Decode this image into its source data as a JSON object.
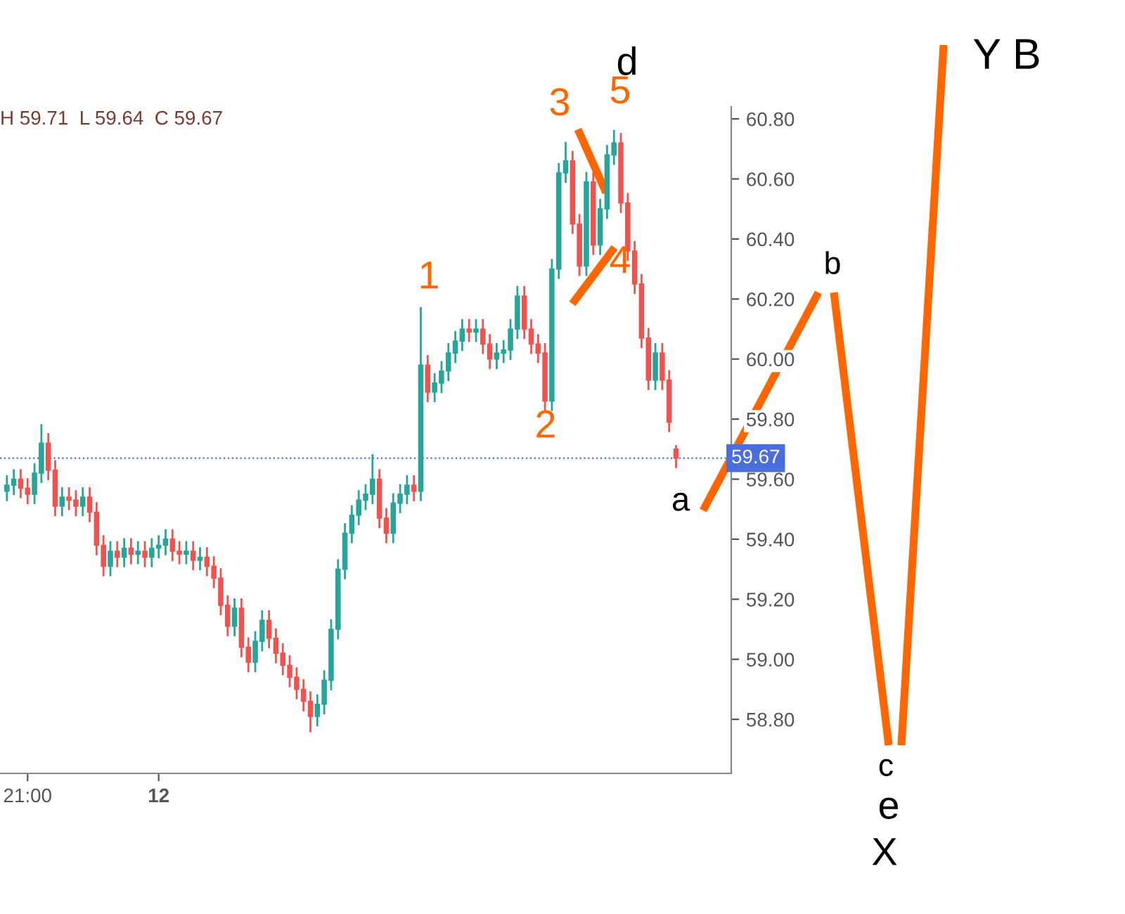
{
  "chart_data": {
    "type": "candlestick",
    "categories": [
      null,
      null,
      null,
      "21:00",
      null,
      null,
      null,
      null,
      null,
      null,
      null,
      null,
      null,
      null,
      null,
      null,
      null,
      null,
      null,
      null,
      null,
      null,
      "12",
      null,
      null,
      null,
      null,
      null,
      null,
      null,
      null,
      null,
      null,
      null,
      null,
      null,
      null,
      null,
      null,
      null,
      null,
      null,
      null,
      null,
      null,
      null,
      null,
      null,
      null,
      null,
      null,
      null,
      null,
      null,
      null,
      null,
      null,
      null,
      null,
      null,
      null,
      null,
      null,
      null,
      null,
      null,
      null,
      null,
      null,
      null,
      null,
      null,
      null,
      null,
      null,
      null,
      null,
      null,
      null,
      null,
      null,
      null,
      null,
      null,
      null,
      null,
      null,
      null,
      null,
      null,
      null,
      null,
      null,
      null,
      null,
      null,
      null,
      null
    ],
    "ohlc": [
      [
        59.56,
        59.61,
        59.53,
        59.58
      ],
      [
        59.58,
        59.63,
        59.55,
        59.6
      ],
      [
        59.6,
        59.63,
        59.54,
        59.57
      ],
      [
        59.57,
        59.6,
        59.52,
        59.55
      ],
      [
        59.55,
        59.65,
        59.52,
        59.62
      ],
      [
        59.62,
        59.78,
        59.59,
        59.72
      ],
      [
        59.72,
        59.75,
        59.6,
        59.63
      ],
      [
        59.63,
        59.66,
        59.48,
        59.51
      ],
      [
        59.51,
        59.57,
        59.48,
        59.54
      ],
      [
        59.54,
        59.57,
        59.5,
        59.53
      ],
      [
        59.53,
        59.56,
        59.48,
        59.51
      ],
      [
        59.51,
        59.57,
        59.48,
        59.54
      ],
      [
        59.54,
        59.57,
        59.46,
        59.49
      ],
      [
        59.49,
        59.52,
        59.35,
        59.38
      ],
      [
        59.38,
        59.41,
        59.28,
        59.31
      ],
      [
        59.31,
        59.39,
        59.28,
        59.36
      ],
      [
        59.36,
        59.39,
        59.31,
        59.34
      ],
      [
        59.34,
        59.4,
        59.31,
        59.37
      ],
      [
        59.37,
        59.4,
        59.32,
        59.35
      ],
      [
        59.35,
        59.39,
        59.32,
        59.36
      ],
      [
        59.36,
        59.39,
        59.31,
        59.34
      ],
      [
        59.34,
        59.4,
        59.31,
        59.37
      ],
      [
        59.37,
        59.41,
        59.34,
        59.38
      ],
      [
        59.38,
        59.43,
        59.35,
        59.4
      ],
      [
        59.4,
        59.43,
        59.33,
        59.36
      ],
      [
        59.36,
        59.39,
        59.32,
        59.35
      ],
      [
        59.35,
        59.39,
        59.32,
        59.36
      ],
      [
        59.36,
        59.39,
        59.3,
        59.33
      ],
      [
        59.33,
        59.37,
        59.3,
        59.34
      ],
      [
        59.34,
        59.37,
        59.28,
        59.31
      ],
      [
        59.31,
        59.34,
        59.24,
        59.27
      ],
      [
        59.27,
        59.3,
        59.15,
        59.18
      ],
      [
        59.18,
        59.21,
        59.08,
        59.11
      ],
      [
        59.11,
        59.2,
        59.08,
        59.17
      ],
      [
        59.17,
        59.2,
        59.01,
        59.04
      ],
      [
        59.04,
        59.07,
        58.96,
        58.99
      ],
      [
        58.99,
        59.09,
        58.96,
        59.06
      ],
      [
        59.06,
        59.16,
        59.03,
        59.13
      ],
      [
        59.13,
        59.16,
        59.04,
        59.07
      ],
      [
        59.07,
        59.1,
        58.99,
        59.02
      ],
      [
        59.02,
        59.05,
        58.95,
        58.98
      ],
      [
        58.98,
        59.01,
        58.91,
        58.94
      ],
      [
        58.94,
        58.97,
        58.87,
        58.9
      ],
      [
        58.9,
        58.93,
        58.83,
        58.86
      ],
      [
        58.86,
        58.89,
        58.76,
        58.81
      ],
      [
        58.81,
        58.88,
        58.78,
        58.85
      ],
      [
        58.85,
        58.96,
        58.82,
        58.93
      ],
      [
        58.93,
        59.13,
        58.9,
        59.1
      ],
      [
        59.1,
        59.33,
        59.07,
        59.3
      ],
      [
        59.3,
        59.45,
        59.27,
        59.42
      ],
      [
        59.42,
        59.51,
        59.39,
        59.48
      ],
      [
        59.48,
        59.56,
        59.45,
        59.53
      ],
      [
        59.53,
        59.58,
        59.5,
        59.55
      ],
      [
        59.55,
        59.68,
        59.52,
        59.6
      ],
      [
        59.6,
        59.63,
        59.44,
        59.47
      ],
      [
        59.47,
        59.5,
        59.39,
        59.42
      ],
      [
        59.42,
        59.55,
        59.39,
        59.52
      ],
      [
        59.52,
        59.58,
        59.49,
        59.55
      ],
      [
        59.55,
        59.61,
        59.52,
        59.58
      ],
      [
        59.58,
        59.61,
        59.53,
        59.56
      ],
      [
        59.56,
        60.17,
        59.53,
        59.98
      ],
      [
        59.98,
        60.01,
        59.86,
        59.89
      ],
      [
        59.89,
        59.95,
        59.86,
        59.92
      ],
      [
        59.92,
        59.99,
        59.89,
        59.96
      ],
      [
        59.96,
        60.05,
        59.93,
        60.02
      ],
      [
        60.02,
        60.09,
        59.99,
        60.06
      ],
      [
        60.06,
        60.13,
        60.03,
        60.1
      ],
      [
        60.1,
        60.13,
        60.06,
        60.09
      ],
      [
        60.09,
        60.13,
        60.06,
        60.1
      ],
      [
        60.1,
        60.13,
        60.02,
        60.05
      ],
      [
        60.05,
        60.08,
        59.97,
        60.0
      ],
      [
        60.0,
        60.05,
        59.97,
        60.02
      ],
      [
        60.02,
        60.06,
        59.99,
        60.03
      ],
      [
        60.03,
        60.13,
        60.0,
        60.1
      ],
      [
        60.1,
        60.24,
        60.07,
        60.21
      ],
      [
        60.21,
        60.24,
        60.07,
        60.1
      ],
      [
        60.1,
        60.13,
        60.02,
        60.05
      ],
      [
        60.05,
        60.08,
        59.99,
        60.02
      ],
      [
        60.02,
        60.05,
        59.83,
        59.86
      ],
      [
        59.86,
        60.33,
        59.83,
        60.3
      ],
      [
        60.3,
        60.65,
        60.27,
        60.62
      ],
      [
        60.62,
        60.72,
        60.59,
        60.66
      ],
      [
        60.66,
        60.69,
        60.42,
        60.45
      ],
      [
        60.45,
        60.48,
        60.28,
        60.31
      ],
      [
        60.31,
        60.62,
        60.28,
        60.59
      ],
      [
        60.59,
        60.62,
        60.35,
        60.38
      ],
      [
        60.38,
        60.53,
        60.35,
        60.5
      ],
      [
        60.5,
        60.71,
        60.47,
        60.68
      ],
      [
        60.68,
        60.76,
        60.65,
        60.72
      ],
      [
        60.72,
        60.75,
        60.49,
        60.52
      ],
      [
        60.52,
        60.55,
        60.33,
        60.36
      ],
      [
        60.36,
        60.39,
        60.22,
        60.25
      ],
      [
        60.25,
        60.28,
        60.04,
        60.07
      ],
      [
        60.07,
        60.1,
        59.9,
        59.93
      ],
      [
        59.93,
        60.05,
        59.9,
        60.02
      ],
      [
        60.02,
        60.05,
        59.9,
        59.93
      ],
      [
        59.93,
        59.96,
        59.76,
        59.79
      ],
      [
        59.7,
        59.71,
        59.64,
        59.67
      ]
    ],
    "colors": [
      "#26a69a",
      "#26a69a",
      "#ef5350",
      "#ef5350",
      "#26a69a",
      "#26a69a",
      "#ef5350",
      "#ef5350",
      "#26a69a",
      "#ef5350",
      "#ef5350",
      "#26a69a",
      "#ef5350",
      "#ef5350",
      "#ef5350",
      "#26a69a",
      "#ef5350",
      "#26a69a",
      "#ef5350",
      "#26a69a",
      "#ef5350",
      "#26a69a",
      "#26a69a",
      "#26a69a",
      "#ef5350",
      "#ef5350",
      "#26a69a",
      "#ef5350",
      "#26a69a",
      "#ef5350",
      "#ef5350",
      "#ef5350",
      "#ef5350",
      "#26a69a",
      "#ef5350",
      "#ef5350",
      "#26a69a",
      "#26a69a",
      "#ef5350",
      "#ef5350",
      "#ef5350",
      "#ef5350",
      "#ef5350",
      "#ef5350",
      "#ef5350",
      "#26a69a",
      "#26a69a",
      "#26a69a",
      "#26a69a",
      "#26a69a",
      "#26a69a",
      "#26a69a",
      "#26a69a",
      "#26a69a",
      "#ef5350",
      "#ef5350",
      "#26a69a",
      "#26a69a",
      "#26a69a",
      "#ef5350",
      "#26a69a",
      "#ef5350",
      "#26a69a",
      "#26a69a",
      "#26a69a",
      "#26a69a",
      "#26a69a",
      "#ef5350",
      "#26a69a",
      "#ef5350",
      "#ef5350",
      "#26a69a",
      "#26a69a",
      "#26a69a",
      "#26a69a",
      "#ef5350",
      "#ef5350",
      "#ef5350",
      "#ef5350",
      "#26a69a",
      "#26a69a",
      "#26a69a",
      "#ef5350",
      "#ef5350",
      "#26a69a",
      "#ef5350",
      "#26a69a",
      "#26a69a",
      "#26a69a",
      "#ef5350",
      "#ef5350",
      "#ef5350",
      "#ef5350",
      "#ef5350",
      "#26a69a",
      "#ef5350",
      "#ef5350",
      "#ef5350"
    ],
    "ylim": [
      58.62,
      60.84
    ],
    "yticks": [
      {
        "value": 58.8,
        "label": "58.80"
      },
      {
        "value": 59.0,
        "label": "59.00"
      },
      {
        "value": 59.2,
        "label": "59.20"
      },
      {
        "value": 59.4,
        "label": "59.40"
      },
      {
        "value": 59.6,
        "label": "59.60"
      },
      {
        "value": 59.8,
        "label": "59.80"
      },
      {
        "value": 60.0,
        "label": "60.00"
      },
      {
        "value": 60.2,
        "label": "60.20"
      },
      {
        "value": 60.4,
        "label": "60.40"
      },
      {
        "value": 60.6,
        "label": "60.60"
      },
      {
        "value": 60.8,
        "label": "60.80"
      }
    ],
    "ref_lines": [
      {
        "axis": "y",
        "value": 59.67,
        "label": "59.67",
        "color": "#4a6fdc",
        "line_style": "dotted"
      }
    ],
    "grid": false,
    "annotations": [
      "H 59.71  L 59.64  C 59.67",
      "1",
      "2",
      {
        "text": "3",
        "y": 60.72
      },
      "4",
      {
        "text": "5",
        "y": 60.76
      },
      "a",
      "b",
      "c",
      "d",
      "e",
      "X",
      "Y B"
    ]
  }
}
